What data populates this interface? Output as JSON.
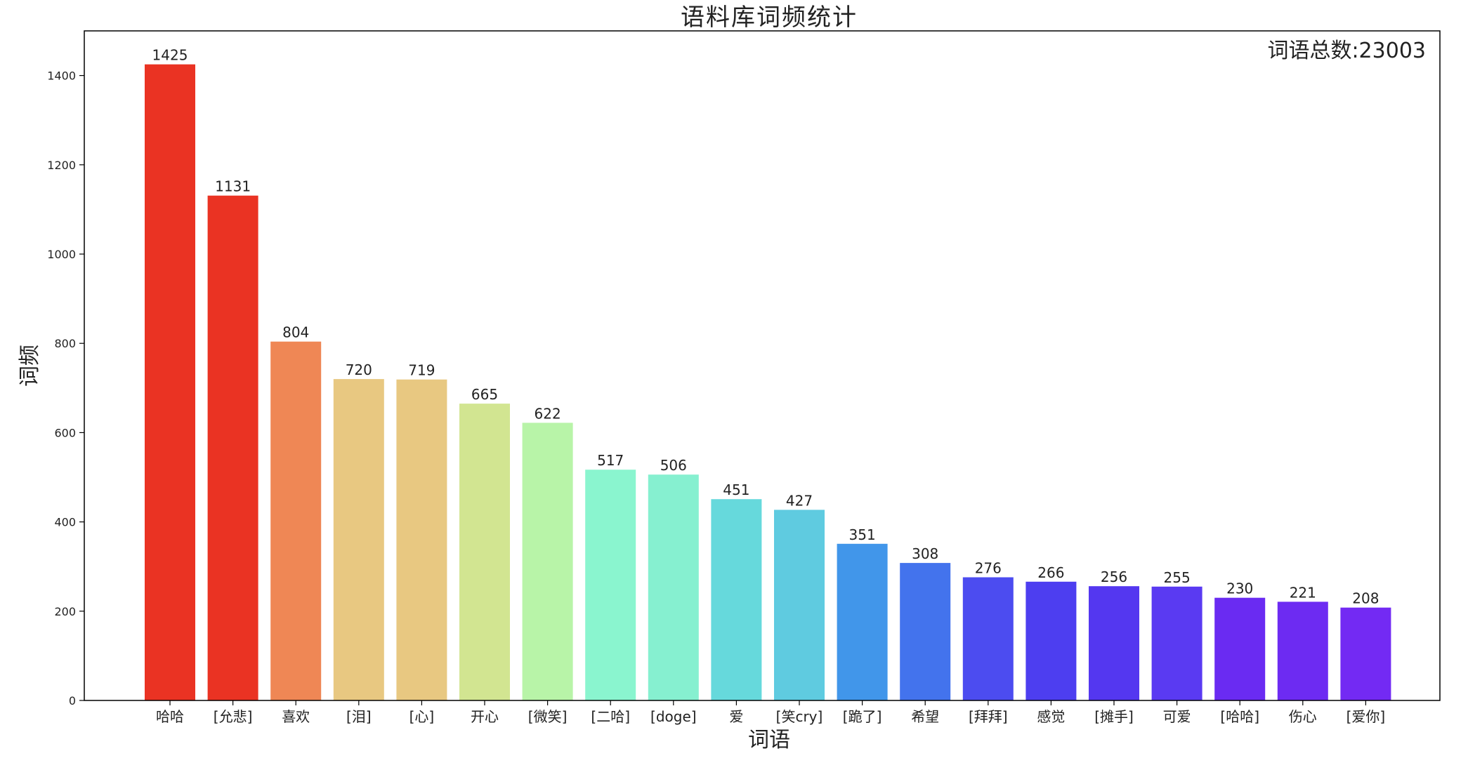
{
  "chart_data": {
    "type": "bar",
    "title": "语料库词频统计",
    "xlabel": "词语",
    "ylabel": "词频",
    "annotation": "词语总数:23003",
    "ylim": [
      0,
      1500
    ],
    "yticks": [
      0,
      200,
      400,
      600,
      800,
      1000,
      1200,
      1400
    ],
    "grid": false,
    "categories": [
      "哈哈",
      "[允悲]",
      "喜欢",
      "[泪]",
      "[心]",
      "开心",
      "[微笑]",
      "[二哈]",
      "[doge]",
      "爱",
      "[笑cry]",
      "[跪了]",
      "希望",
      "[拜拜]",
      "感觉",
      "[摊手]",
      "可爱",
      "[哈哈]",
      "伤心",
      "[爱你]"
    ],
    "values": [
      1425,
      1131,
      804,
      720,
      719,
      665,
      622,
      517,
      506,
      451,
      427,
      351,
      308,
      276,
      266,
      256,
      255,
      230,
      221,
      208
    ],
    "colors": [
      "#ea3323",
      "#ea3323",
      "#ef8755",
      "#e8c881",
      "#e8c881",
      "#d2e591",
      "#b8f4a8",
      "#8af5cf",
      "#86f0d0",
      "#66d9dc",
      "#5fcbe0",
      "#4196ea",
      "#4373ed",
      "#4c4cf0",
      "#4d3ef0",
      "#5437f0",
      "#5a3af2",
      "#6a2bf2",
      "#6d2bf2",
      "#732af3"
    ]
  }
}
